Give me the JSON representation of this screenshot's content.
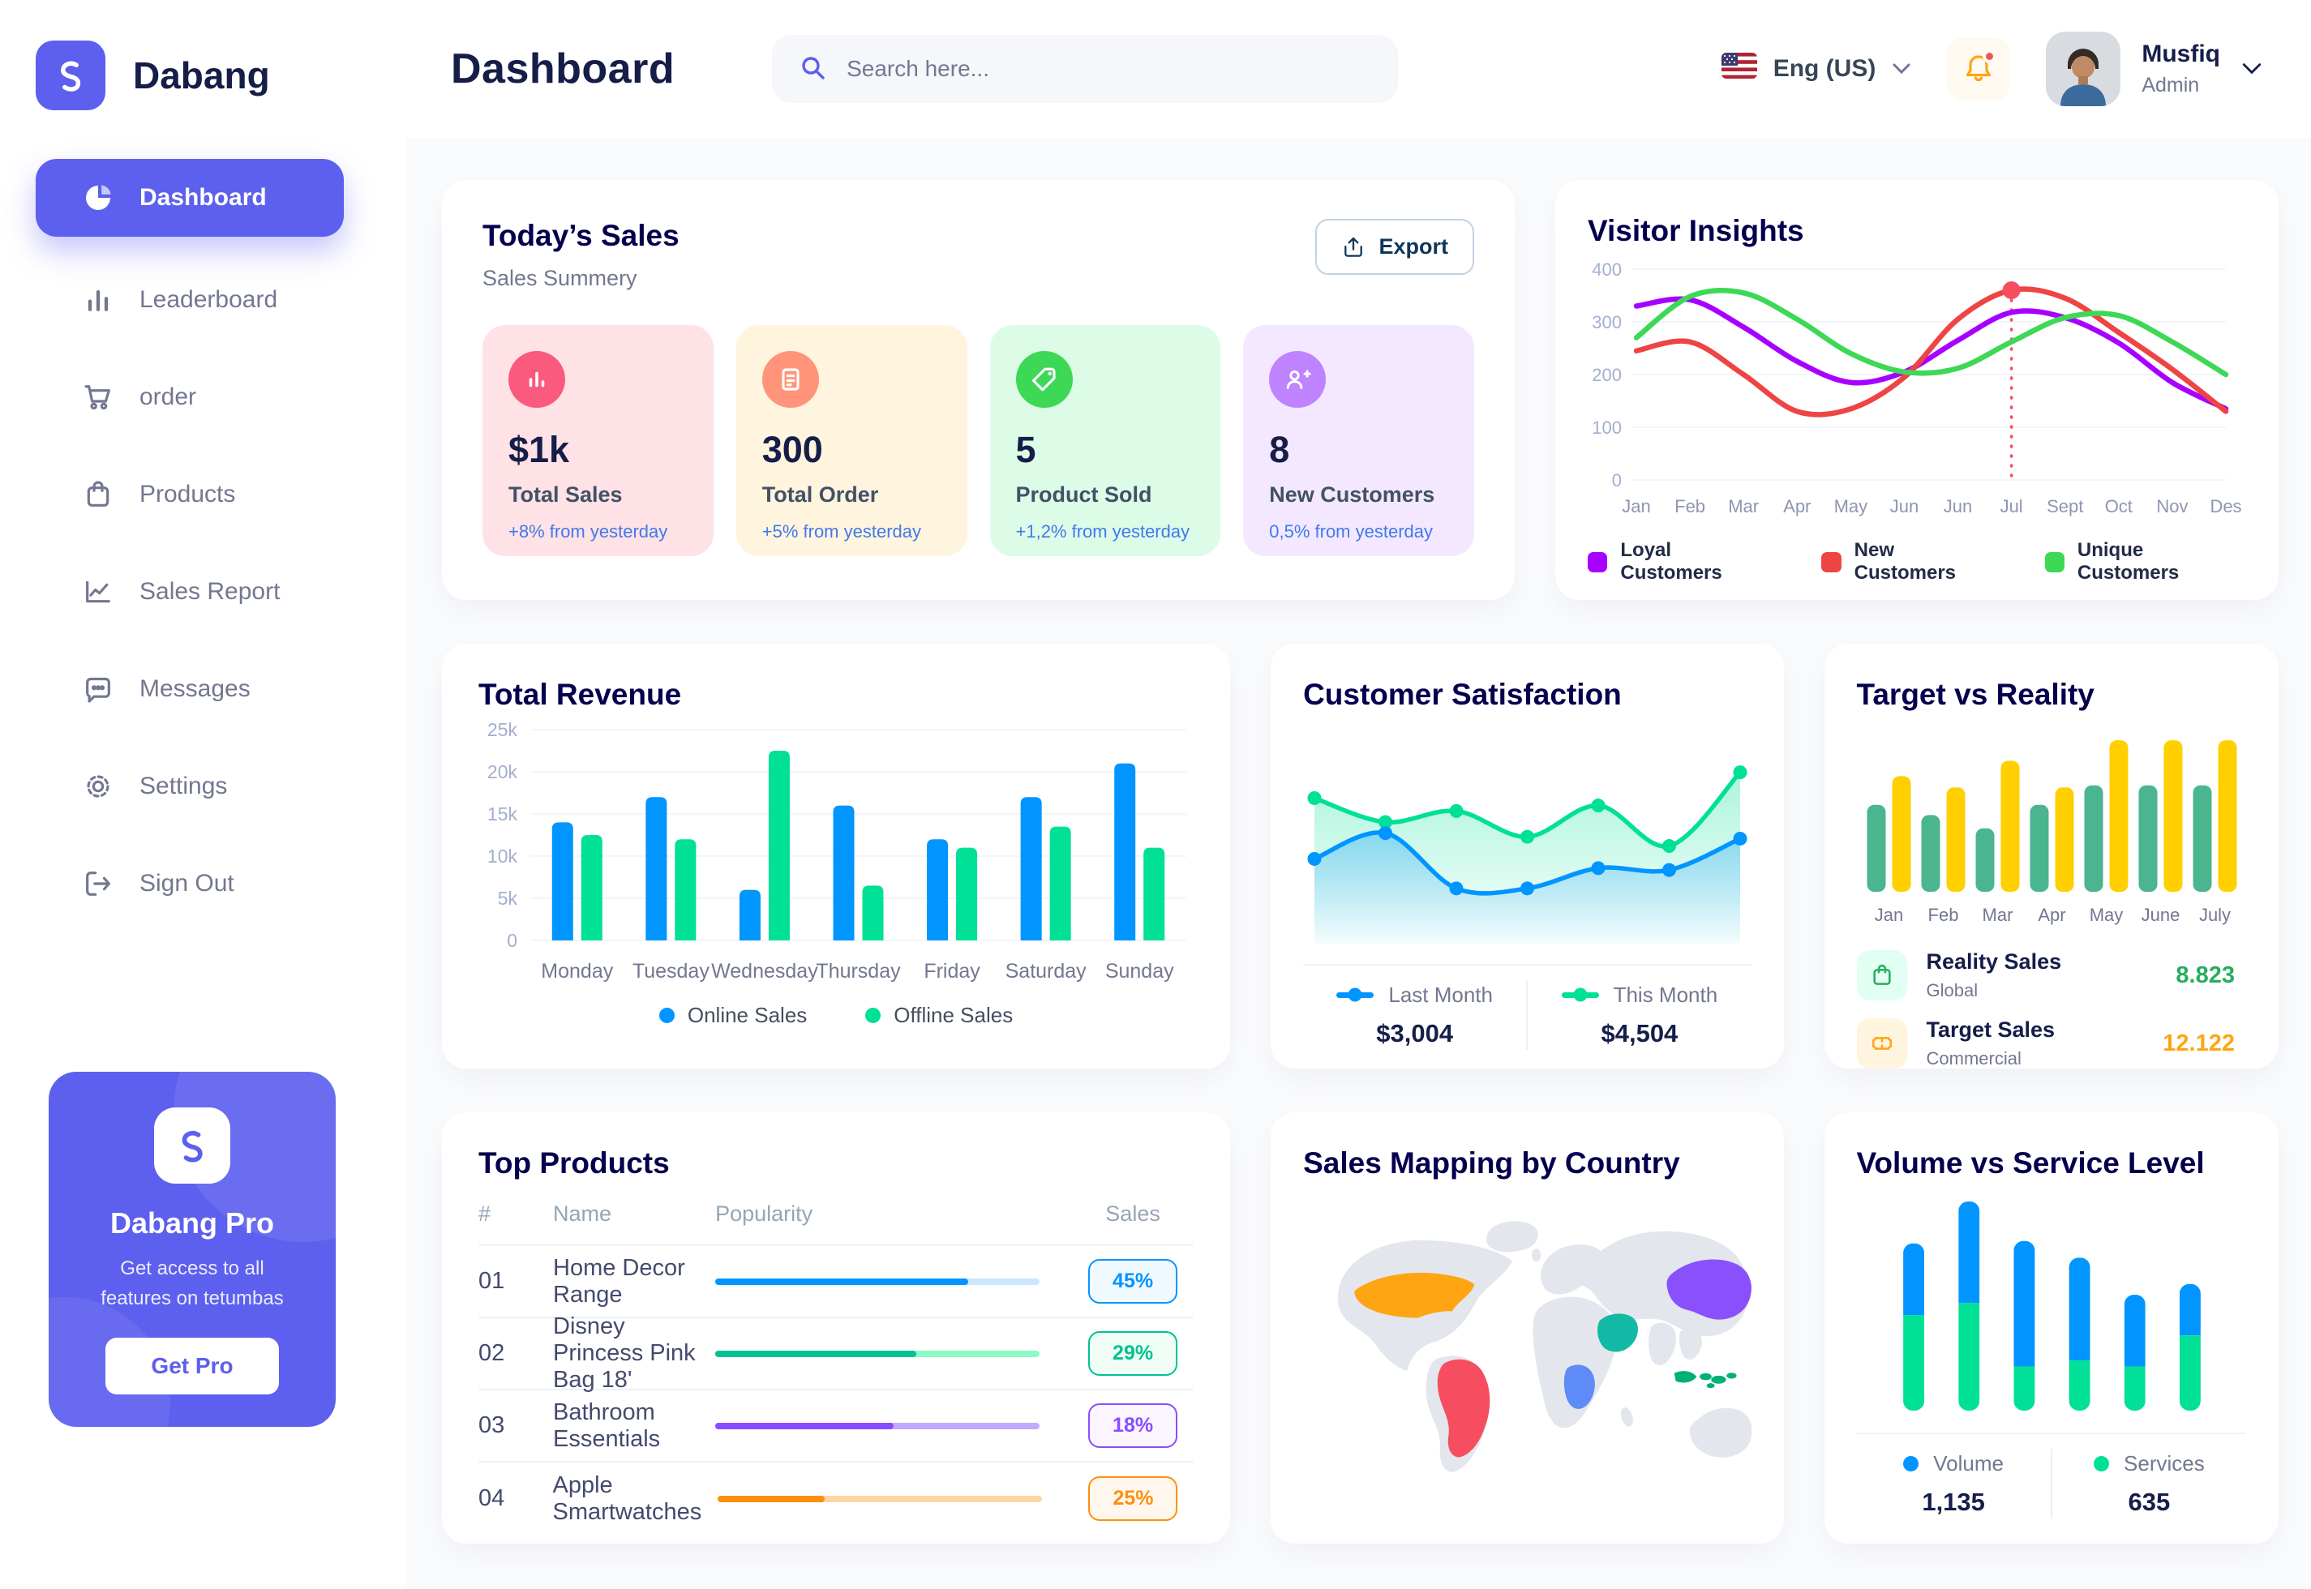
{
  "theme": {
    "accent": "#5D5FEF",
    "heading": "#05004E",
    "text": "#151D48",
    "muted": "#737791",
    "blue": "#0095FF",
    "green": "#00E096"
  },
  "app": {
    "brand": "Dabang"
  },
  "header": {
    "title": "Dashboard",
    "search_placeholder": "Search here...",
    "language": "Eng (US)",
    "user": {
      "name": "Musfiq",
      "role": "Admin"
    }
  },
  "sidebar": {
    "items": [
      {
        "label": "Dashboard"
      },
      {
        "label": "Leaderboard"
      },
      {
        "label": "order"
      },
      {
        "label": "Products"
      },
      {
        "label": "Sales Report"
      },
      {
        "label": "Messages"
      },
      {
        "label": "Settings"
      },
      {
        "label": "Sign Out"
      }
    ],
    "promo": {
      "title": "Dabang Pro",
      "subtitle": "Get access to all features on tetumbas",
      "button": "Get Pro"
    }
  },
  "today_sales": {
    "title": "Today’s Sales",
    "subtitle": "Sales Summery",
    "export_label": "Export",
    "cards": [
      {
        "value": "$1k",
        "label": "Total Sales",
        "delta": "+8% from yesterday",
        "bg": "#FFE2E5",
        "icon_bg": "#FA5A7D"
      },
      {
        "value": "300",
        "label": "Total Order",
        "delta": "+5% from yesterday",
        "bg": "#FFF4DE",
        "icon_bg": "#FF947A"
      },
      {
        "value": "5",
        "label": "Product Sold",
        "delta": "+1,2% from yesterday",
        "bg": "#DCFCE7",
        "icon_bg": "#3CD856"
      },
      {
        "value": "8",
        "label": "New Customers",
        "delta": "0,5% from yesterday",
        "bg": "#F3E8FF",
        "icon_bg": "#BF83FF"
      }
    ]
  },
  "charts": {
    "visitor_insights": {
      "type": "line",
      "title": "Visitor Insights",
      "x": [
        "Jan",
        "Feb",
        "Mar",
        "Apr",
        "May",
        "Jun",
        "Jun",
        "Jul",
        "Sept",
        "Oct",
        "Nov",
        "Des"
      ],
      "ylim": [
        0,
        400
      ],
      "yticks": [
        0,
        100,
        200,
        300,
        400
      ],
      "series": [
        {
          "name": "Loyal Customers",
          "color": "#A700FF",
          "values": [
            330,
            342,
            290,
            225,
            185,
            205,
            265,
            318,
            308,
            260,
            185,
            135
          ]
        },
        {
          "name": "New Customers",
          "color": "#EF4444",
          "values": [
            245,
            262,
            200,
            130,
            135,
            195,
            305,
            360,
            345,
            280,
            210,
            130
          ]
        },
        {
          "name": "Unique Customers",
          "color": "#3CD856",
          "values": [
            270,
            348,
            355,
            305,
            240,
            205,
            212,
            262,
            308,
            312,
            262,
            200
          ]
        }
      ],
      "highlight": {
        "x_index": 7,
        "series": "New Customers",
        "value": 360
      }
    },
    "total_revenue": {
      "type": "bar",
      "title": "Total Revenue",
      "categories": [
        "Monday",
        "Tuesday",
        "Wednesday",
        "Thursday",
        "Friday",
        "Saturday",
        "Sunday"
      ],
      "ylim": [
        0,
        25000
      ],
      "yticks": [
        0,
        5000,
        10000,
        15000,
        20000,
        25000
      ],
      "ytick_labels": [
        "0",
        "5k",
        "10k",
        "15k",
        "20k",
        "25k"
      ],
      "series": [
        {
          "name": "Online Sales",
          "color": "#0095FF",
          "values": [
            14000,
            17000,
            6000,
            16000,
            12000,
            17000,
            21000
          ]
        },
        {
          "name": "Offline Sales",
          "color": "#00E096",
          "values": [
            12500,
            12000,
            22500,
            6500,
            11000,
            13500,
            11000
          ]
        }
      ]
    },
    "customer_satisfaction": {
      "type": "area",
      "title": "Customer Satisfaction",
      "ylim": [
        0,
        110
      ],
      "series": [
        {
          "name": "Last Month",
          "color": "#0095FF",
          "total": "$3,004",
          "values": [
            46,
            60,
            30,
            30,
            41,
            40,
            57
          ]
        },
        {
          "name": "This Month",
          "color": "#00E096",
          "total": "$4,504",
          "values": [
            79,
            66,
            72,
            58,
            75,
            53,
            93
          ]
        }
      ]
    },
    "target_vs_reality": {
      "type": "bar",
      "title": "Target vs Reality",
      "categories": [
        "Jan",
        "Feb",
        "Mar",
        "Apr",
        "May",
        "June",
        "July"
      ],
      "ylim": [
        0,
        16
      ],
      "series": [
        {
          "name": "Reality Sales",
          "color": "#4AB58E",
          "values": [
            8.5,
            7.5,
            6.2,
            8.5,
            10.4,
            10.4,
            10.4
          ]
        },
        {
          "name": "Target Sales",
          "color": "#FFCF00",
          "values": [
            11.3,
            10.2,
            12.8,
            10.2,
            14.8,
            14.8,
            14.8
          ]
        }
      ],
      "legend": [
        {
          "title": "Reality Sales",
          "subtitle": "Global",
          "value": "8.823",
          "value_color": "#27AE60",
          "icon_bg": "#E2FFF3"
        },
        {
          "title": "Target Sales",
          "subtitle": "Commercial",
          "value": "12.122",
          "value_color": "#FFA412",
          "icon_bg": "#FFF4DE"
        }
      ]
    },
    "volume_service": {
      "type": "stacked-bar",
      "title": "Volume vs Service Level",
      "series": [
        {
          "name": "Volume",
          "color": "#0095FF",
          "total": "1,135",
          "values": [
            6,
            8.5,
            10.5,
            8.6,
            6,
            4.3
          ]
        },
        {
          "name": "Services",
          "color": "#00E096",
          "total": "635",
          "values": [
            8,
            9,
            3.7,
            4.2,
            3.7,
            6.3
          ]
        }
      ]
    }
  },
  "top_products": {
    "title": "Top Products",
    "columns": [
      "#",
      "Name",
      "Popularity",
      "Sales"
    ],
    "rows": [
      {
        "num": "01",
        "name": "Home Decor Range",
        "fill": "78%",
        "pct": "45%",
        "color": "#0095FF",
        "track": "#CDE7FF",
        "badge_bg": "#F0F9FF"
      },
      {
        "num": "02",
        "name": "Disney Princess Pink Bag 18'",
        "fill": "62%",
        "pct": "29%",
        "color": "#00C292",
        "track": "#8CFAC7",
        "badge_bg": "#F0FDF4"
      },
      {
        "num": "03",
        "name": "Bathroom Essentials",
        "fill": "55%",
        "pct": "18%",
        "color": "#884DFF",
        "track": "#C5A8FF",
        "badge_bg": "#FAF5FF"
      },
      {
        "num": "04",
        "name": "Apple Smartwatches",
        "fill": "33%",
        "pct": "25%",
        "color": "#FF8F0D",
        "track": "#FFD5A4",
        "badge_bg": "#FFF7ED"
      }
    ]
  },
  "sales_map": {
    "title": "Sales Mapping by Country",
    "countries": [
      {
        "key": "usa",
        "name": "United States",
        "color": "#FFA412"
      },
      {
        "key": "brazil",
        "name": "Brazil",
        "color": "#F64E60"
      },
      {
        "key": "saudi",
        "name": "Saudi Arabia",
        "color": "#13B9A5"
      },
      {
        "key": "drc",
        "name": "Democratic Republic of Congo",
        "color": "#5E8BF5"
      },
      {
        "key": "china",
        "name": "China",
        "color": "#8950FC"
      },
      {
        "key": "indonesia",
        "name": "Indonesia",
        "color": "#00B074"
      }
    ]
  }
}
